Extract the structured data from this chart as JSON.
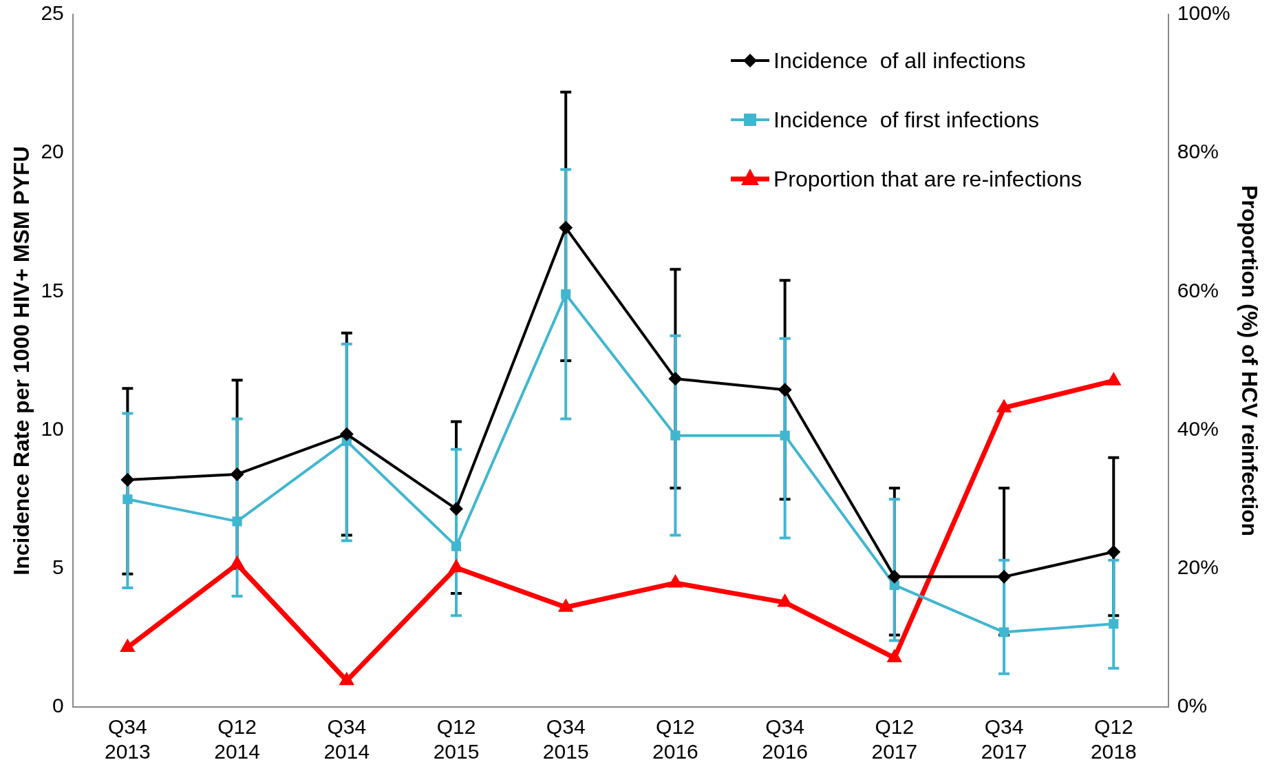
{
  "chart_data": {
    "type": "line",
    "categories": [
      "Q34 2013",
      "Q12 2014",
      "Q34 2014",
      "Q12 2015",
      "Q34 2015",
      "Q12 2016",
      "Q34 2016",
      "Q12 2017",
      "Q34 2017",
      "Q12 2018"
    ],
    "ylabel": "Incidence Rate per 1000 HIV+ MSM PYFU",
    "y2label": "Proportion (%) of HCV reinfection",
    "ylim": [
      0,
      25
    ],
    "yticks": [
      0,
      5,
      10,
      15,
      20,
      25
    ],
    "y2lim": [
      0,
      100
    ],
    "y2ticks": [
      {
        "value": 0,
        "label": "0%"
      },
      {
        "value": 20,
        "label": "20%"
      },
      {
        "value": 40,
        "label": "40%"
      },
      {
        "value": 60,
        "label": "60%"
      },
      {
        "value": 80,
        "label": "80%"
      },
      {
        "value": 100,
        "label": "100%"
      }
    ],
    "grid": false,
    "legend": "top right",
    "line_style": "solid",
    "series": [
      {
        "name": "Incidence  of all infections",
        "color": "#000000",
        "marker": "diamond",
        "values": [
          8.2,
          8.4,
          9.85,
          7.15,
          17.3,
          11.85,
          11.45,
          4.7,
          4.7,
          5.6
        ],
        "errors": [
          [
            4.8,
            11.5
          ],
          [
            5.0,
            11.8
          ],
          [
            6.2,
            13.5
          ],
          [
            4.1,
            10.3
          ],
          [
            12.5,
            22.2
          ],
          [
            7.9,
            15.8
          ],
          [
            7.5,
            15.4
          ],
          [
            2.6,
            7.9
          ],
          [
            2.6,
            7.9
          ],
          [
            3.3,
            9.0
          ]
        ]
      },
      {
        "name": "Incidence  of first infections",
        "color": "#41b6d0",
        "marker": "square",
        "values": [
          7.5,
          6.7,
          9.6,
          5.8,
          14.9,
          9.8,
          9.8,
          4.4,
          2.7,
          3.0
        ],
        "errors": [
          [
            4.3,
            10.6
          ],
          [
            4.0,
            10.4
          ],
          [
            6.0,
            13.1
          ],
          [
            3.3,
            9.3
          ],
          [
            10.4,
            19.4
          ],
          [
            6.2,
            13.4
          ],
          [
            6.1,
            13.3
          ],
          [
            2.4,
            7.5
          ],
          [
            1.2,
            5.3
          ],
          [
            1.4,
            5.3
          ]
        ]
      },
      {
        "name": "Proportion that are re-infections",
        "color": "#ff0000",
        "marker": "triangle",
        "axis": "y2",
        "values": [
          8.6,
          20.6,
          3.8,
          20.1,
          14.4,
          17.9,
          15.1,
          7.1,
          43.2,
          47.1
        ]
      }
    ]
  }
}
